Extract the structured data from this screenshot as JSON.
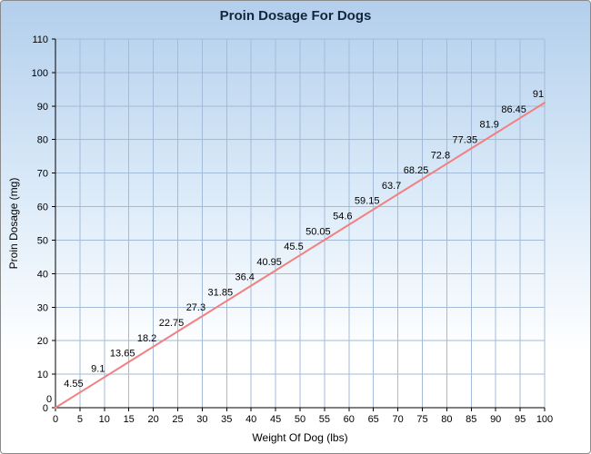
{
  "chart_data": {
    "type": "line",
    "title": "Proin Dosage For Dogs",
    "xlabel": "Weight Of Dog (lbs)",
    "ylabel": "Proin Dosage (mg)",
    "x": [
      0,
      5,
      10,
      15,
      20,
      25,
      30,
      35,
      40,
      45,
      50,
      55,
      60,
      65,
      70,
      75,
      80,
      85,
      90,
      95,
      100
    ],
    "y": [
      0,
      4.55,
      9.1,
      13.65,
      18.2,
      22.75,
      27.3,
      31.85,
      36.4,
      40.95,
      45.5,
      50.05,
      54.6,
      59.15,
      63.7,
      68.25,
      72.8,
      77.35,
      81.9,
      86.45,
      91
    ],
    "point_labels": [
      "0",
      "4.55",
      "9.1",
      "13.65",
      "18.2",
      "22.75",
      "27.3",
      "31.85",
      "36.4",
      "40.95",
      "45.5",
      "50.05",
      "54.6",
      "59.15",
      "63.7",
      "68.25",
      "72.8",
      "77.35",
      "81.9",
      "86.45",
      "91"
    ],
    "xlim": [
      0,
      100
    ],
    "ylim": [
      0,
      110
    ],
    "x_ticks": [
      0,
      5,
      10,
      15,
      20,
      25,
      30,
      35,
      40,
      45,
      50,
      55,
      60,
      65,
      70,
      75,
      80,
      85,
      90,
      95,
      100
    ],
    "y_ticks": [
      0,
      10,
      20,
      30,
      40,
      50,
      60,
      70,
      80,
      90,
      100,
      110
    ],
    "grid": true,
    "legend": "none",
    "colors": {
      "line": "#f28080",
      "grid": "#a3bbd9",
      "axis": "#000000",
      "tick_label": "#000000",
      "point_label": "#000000",
      "title": "#15253b",
      "background_top": "#b3cfec",
      "background_bottom": "#ffffff",
      "frame_border": "#8a8a8a"
    }
  }
}
